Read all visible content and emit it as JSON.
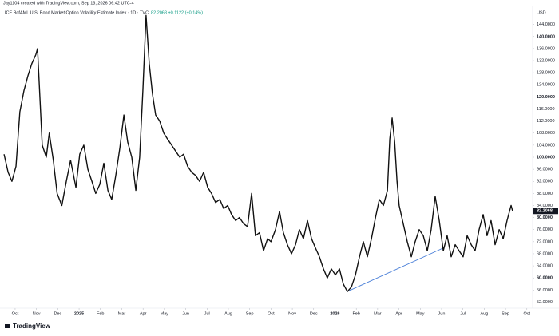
{
  "attribution": "Jay1104 created with TradingView.com, Sep 13, 2026 06:42 UTC-4",
  "logo": "TradingView",
  "chart_data": {
    "type": "line",
    "title": "ICE BofAML U.S. Bond Market Option Volatility Estimate Index · 1D · TVC",
    "quote": "82.2068 +0.1122 (+0.14%)",
    "currency": "USD",
    "color": "#111111",
    "grid": false,
    "x": [
      -0.52,
      -0.33,
      -0.15,
      0.04,
      0.22,
      0.41,
      0.6,
      0.78,
      0.97,
      1.05,
      1.16,
      1.27,
      1.46,
      1.6,
      1.79,
      1.97,
      2.19,
      2.4,
      2.6,
      2.85,
      3.03,
      3.22,
      3.41,
      3.6,
      3.78,
      3.97,
      4.16,
      4.35,
      4.53,
      4.72,
      4.91,
      5.1,
      5.28,
      5.47,
      5.66,
      5.84,
      5.99,
      6.14,
      6.29,
      6.44,
      6.59,
      6.78,
      6.97,
      7.15,
      7.34,
      7.53,
      7.72,
      7.9,
      8.09,
      8.28,
      8.46,
      8.65,
      8.84,
      9.03,
      9.21,
      9.4,
      9.6,
      9.78,
      9.97,
      10.15,
      10.34,
      10.52,
      10.71,
      10.9,
      11.09,
      11.27,
      11.46,
      11.65,
      11.84,
      12.0,
      12.21,
      12.4,
      12.58,
      12.77,
      12.96,
      13.15,
      13.33,
      13.52,
      13.71,
      13.9,
      14.08,
      14.27,
      14.46,
      14.64,
      14.83,
      15.02,
      15.21,
      15.39,
      15.58,
      15.77,
      15.96,
      16.15,
      16.33,
      16.52,
      16.71,
      16.9,
      17.08,
      17.27,
      17.46,
      17.57,
      17.68,
      17.8,
      17.91,
      18.01,
      18.2,
      18.39,
      18.58,
      18.76,
      18.95,
      19.14,
      19.33,
      19.51,
      19.7,
      19.89,
      20.08,
      20.26,
      20.45,
      20.64,
      20.82,
      21.01,
      21.2,
      21.39,
      21.57,
      21.76,
      21.95,
      22.13,
      22.32,
      22.51,
      22.7,
      22.89,
      23.07,
      23.26,
      23.33
    ],
    "values": [
      101,
      95,
      92,
      97,
      115,
      122,
      127,
      131,
      134,
      136,
      120,
      104,
      100,
      108,
      99,
      88,
      84,
      92,
      99,
      90,
      101,
      104,
      96,
      92,
      88,
      91,
      98,
      89,
      86,
      94,
      103,
      114,
      105,
      100,
      89,
      100,
      122,
      147,
      131,
      121,
      114,
      112,
      108,
      106,
      104,
      102,
      100,
      101,
      97,
      95,
      94,
      92,
      95,
      90,
      88,
      85,
      86,
      83,
      84,
      81,
      79,
      80,
      78,
      77,
      88,
      74,
      75,
      69,
      73,
      72,
      76,
      82,
      75,
      71,
      68,
      71,
      76,
      73,
      79,
      73,
      70,
      67,
      63,
      60,
      63,
      61,
      63,
      58,
      55.5,
      57,
      61,
      67,
      72,
      67,
      73,
      80,
      86,
      84,
      89,
      106,
      113,
      105,
      92,
      84,
      78,
      72,
      67,
      72,
      76,
      74,
      69,
      76,
      87,
      79,
      69,
      74,
      67,
      71,
      69,
      67,
      74,
      71,
      69,
      76,
      81,
      74,
      79,
      71,
      76,
      73,
      79,
      84,
      82.2068
    ],
    "last_value": 82.2068,
    "trendline": {
      "x": [
        15.58,
        20.11
      ],
      "values": [
        55.5,
        70
      ],
      "color": "#4a7fd8"
    },
    "xlim": [
      -0.71,
      24.27
    ],
    "xticks": [
      {
        "value": 0,
        "label": "Oct"
      },
      {
        "value": 1,
        "label": "Nov"
      },
      {
        "value": 2,
        "label": "Dec"
      },
      {
        "value": 3,
        "label": "2025"
      },
      {
        "value": 4,
        "label": "Feb"
      },
      {
        "value": 5,
        "label": "Mar"
      },
      {
        "value": 6,
        "label": "Apr"
      },
      {
        "value": 7,
        "label": "May"
      },
      {
        "value": 8,
        "label": "Jun"
      },
      {
        "value": 9,
        "label": "Jul"
      },
      {
        "value": 10,
        "label": "Aug"
      },
      {
        "value": 11,
        "label": "Sep"
      },
      {
        "value": 12,
        "label": "Oct"
      },
      {
        "value": 13,
        "label": "Nov"
      },
      {
        "value": 14,
        "label": "Dec"
      },
      {
        "value": 15,
        "label": "2026"
      },
      {
        "value": 16,
        "label": "Feb"
      },
      {
        "value": 17,
        "label": "Mar"
      },
      {
        "value": 18,
        "label": "Apr"
      },
      {
        "value": 19,
        "label": "May"
      },
      {
        "value": 20,
        "label": "Jun"
      },
      {
        "value": 21,
        "label": "Jul"
      },
      {
        "value": 22,
        "label": "Aug"
      },
      {
        "value": 23,
        "label": "Sep"
      },
      {
        "value": 24,
        "label": "Oct"
      }
    ],
    "ylim": [
      50,
      150
    ],
    "yticks": [
      {
        "value": 52,
        "label": "52.0000"
      },
      {
        "value": 56,
        "label": "56.0000"
      },
      {
        "value": 60,
        "label": "60.0000"
      },
      {
        "value": 64,
        "label": "64.0000"
      },
      {
        "value": 68,
        "label": "68.0000"
      },
      {
        "value": 72,
        "label": "72.0000"
      },
      {
        "value": 76,
        "label": "76.0000"
      },
      {
        "value": 80,
        "label": "80.0000"
      },
      {
        "value": 84,
        "label": "84.0000"
      },
      {
        "value": 88,
        "label": "88.0000"
      },
      {
        "value": 92,
        "label": "92.0000"
      },
      {
        "value": 96,
        "label": "96.0000"
      },
      {
        "value": 100,
        "label": "100.0000"
      },
      {
        "value": 104,
        "label": "104.0000"
      },
      {
        "value": 108,
        "label": "108.0000"
      },
      {
        "value": 112,
        "label": "112.0000"
      },
      {
        "value": 116,
        "label": "116.0000"
      },
      {
        "value": 120,
        "label": "120.0000"
      },
      {
        "value": 124,
        "label": "124.0000"
      },
      {
        "value": 128,
        "label": "128.0000"
      },
      {
        "value": 132,
        "label": "132.0000"
      },
      {
        "value": 136,
        "label": "136.0000"
      },
      {
        "value": 140,
        "label": "140.0000"
      },
      {
        "value": 144,
        "label": "144.0000"
      }
    ]
  }
}
